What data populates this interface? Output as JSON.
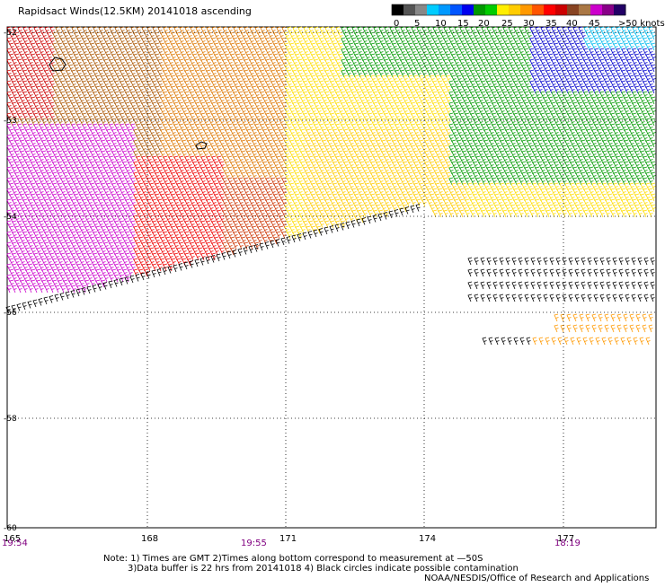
{
  "title": "Rapidsact Winds(12.5KM) 20141018 ascending",
  "legend": {
    "colors": [
      "#000000",
      "#555555",
      "#888888",
      "#00ccff",
      "#0099ff",
      "#0055ff",
      "#0000ee",
      "#009900",
      "#00cc00",
      "#ffee00",
      "#ffcc00",
      "#ff9900",
      "#ff5500",
      "#ff0000",
      "#cc0000",
      "#884422",
      "#aa7744",
      "#cc00cc",
      "#880088",
      "#220066"
    ],
    "labels": [
      "0",
      "5",
      "10",
      "15",
      "20",
      "25",
      "30",
      "35",
      "40",
      "45",
      ">50 knots"
    ]
  },
  "axes": {
    "lon_ticks": [
      "165",
      "168",
      "171",
      "174",
      "177"
    ],
    "lat_ticks": [
      "-52",
      "-53",
      "-54",
      "-56",
      "-58",
      "-60"
    ],
    "times": [
      "19:54",
      "19:55",
      "18:19"
    ]
  },
  "notes": {
    "line1": "Note: 1) Times are GMT 2)Times along bottom correspond to measurement at —50S",
    "line2": "3)Data buffer is 22 hrs from 20141018 4) Black circles indicate possible contamination",
    "credit": "NOAA/NESDIS/Office of Research and Applications"
  }
}
